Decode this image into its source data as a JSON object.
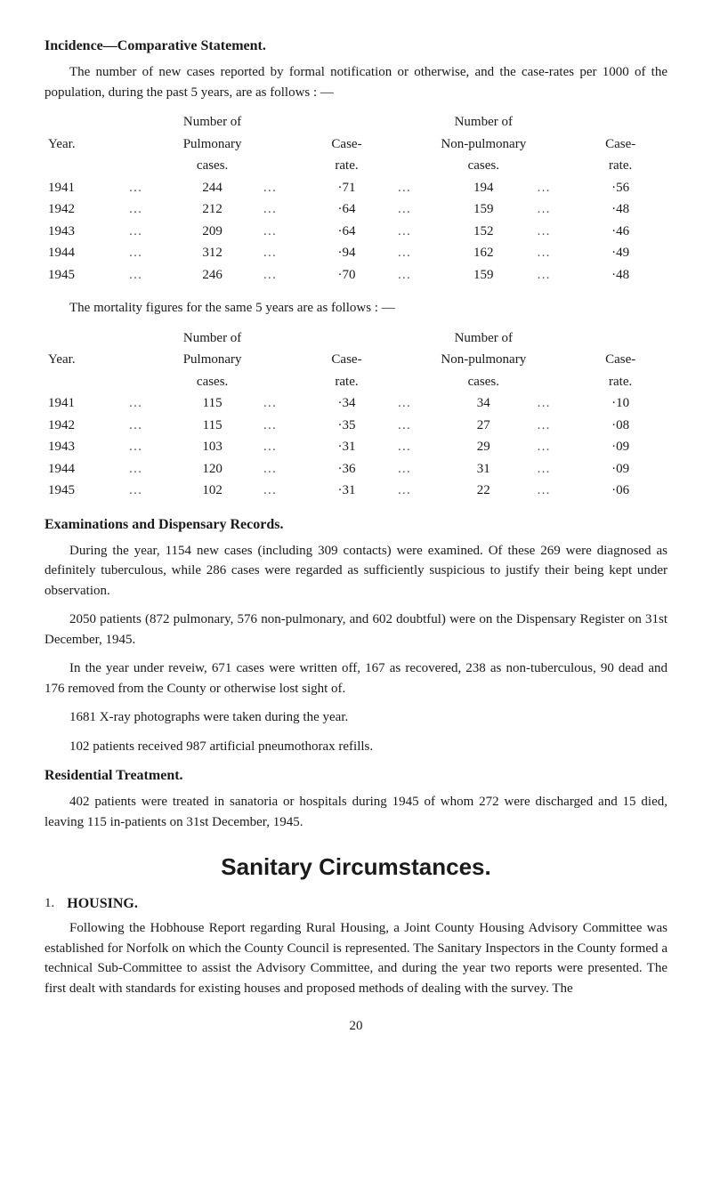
{
  "section1": {
    "heading": "Incidence—Comparative Statement.",
    "intro": "The number of new cases reported by formal notification or otherwise, and the case-rates per 1000 of the population, during the past 5 years, are as follows : —"
  },
  "table1": {
    "headers": {
      "year": "Year.",
      "pulm_top": "Number of",
      "pulm_mid": "Pulmonary",
      "pulm_bot": "cases.",
      "case1_top": "Case-",
      "case1_bot": "rate.",
      "nonp_top": "Number of",
      "nonp_mid": "Non-pulmonary",
      "nonp_bot": "cases.",
      "case2_top": "Case-",
      "case2_bot": "rate."
    },
    "rows": [
      {
        "year": "1941",
        "pulm": "244",
        "case1": "·71",
        "nonp": "194",
        "case2": "·56"
      },
      {
        "year": "1942",
        "pulm": "212",
        "case1": "·64",
        "nonp": "159",
        "case2": "·48"
      },
      {
        "year": "1943",
        "pulm": "209",
        "case1": "·64",
        "nonp": "152",
        "case2": "·46"
      },
      {
        "year": "1944",
        "pulm": "312",
        "case1": "·94",
        "nonp": "162",
        "case2": "·49"
      },
      {
        "year": "1945",
        "pulm": "246",
        "case1": "·70",
        "nonp": "159",
        "case2": "·48"
      }
    ]
  },
  "mortality_intro": "The mortality figures for the same 5 years are as follows : —",
  "table2": {
    "rows": [
      {
        "year": "1941",
        "pulm": "115",
        "case1": "·34",
        "nonp": "34",
        "case2": "·10"
      },
      {
        "year": "1942",
        "pulm": "115",
        "case1": "·35",
        "nonp": "27",
        "case2": "·08"
      },
      {
        "year": "1943",
        "pulm": "103",
        "case1": "·31",
        "nonp": "29",
        "case2": "·09"
      },
      {
        "year": "1944",
        "pulm": "120",
        "case1": "·36",
        "nonp": "31",
        "case2": "·09"
      },
      {
        "year": "1945",
        "pulm": "102",
        "case1": "·31",
        "nonp": "22",
        "case2": "·06"
      }
    ]
  },
  "exams": {
    "heading": "Examinations and Dispensary Records.",
    "p1": "During the year, 1154 new cases (including 309 contacts) were examined. Of these 269 were diagnosed as definitely tuberculous, while 286 cases were regarded as sufficiently suspicious to justify their being kept under observation.",
    "p2": "2050 patients (872 pulmonary, 576 non-pulmonary, and 602 doubtful) were on the Dispensary Register on 31st December, 1945.",
    "p3": "In the year under reveiw, 671 cases were written off, 167 as recovered, 238 as non-tuberculous, 90 dead and 176 removed from the County or otherwise lost sight of.",
    "p4": "1681 X-ray photographs were taken during the year.",
    "p5": "102 patients received 987 artificial pneumothorax refills."
  },
  "residential": {
    "heading": "Residential Treatment.",
    "p1": "402 patients were treated in sanatoria or hospitals during 1945 of whom 272 were discharged and 15 died, leaving 115 in-patients on 31st December, 1945."
  },
  "sanitary": {
    "title": "Sanitary Circumstances.",
    "num": "1.",
    "sub": "HOUSING.",
    "p1": "Following the Hobhouse Report regarding Rural Housing, a Joint County Housing Advisory Committee was established for Norfolk on which the County Council is represented. The Sanitary Inspectors in the County formed a technical Sub-Committee to assist the Advisory Committee, and during the year two reports were presented. The first dealt with standards for existing houses and proposed methods of dealing with the survey. The"
  },
  "pagenum": "20",
  "dots": "…"
}
